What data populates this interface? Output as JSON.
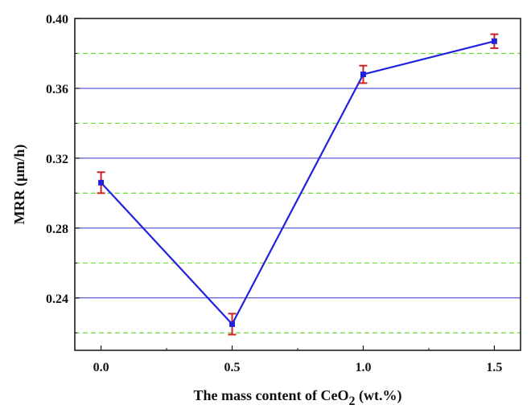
{
  "chart_data": {
    "type": "line",
    "xlabel": "The mass content of CeO",
    "xlabel_subscript": "2",
    "xlabel_suffix": " (wt.%)",
    "ylabel": "MRR (μm/h)",
    "xlim": [
      -0.1,
      1.6
    ],
    "ylim": [
      0.21,
      0.4
    ],
    "x_ticks": [
      "0.0",
      "0.5",
      "1.0",
      "1.5"
    ],
    "y_ticks": [
      "0.24",
      "0.28",
      "0.32",
      "0.36",
      "0.40"
    ],
    "major_grid_y": [
      0.24,
      0.28,
      0.32,
      0.36
    ],
    "minor_grid_y": [
      0.22,
      0.26,
      0.3,
      0.34,
      0.38
    ],
    "series": [
      {
        "x": [
          0.0,
          0.5,
          1.0,
          1.5
        ],
        "y": [
          0.306,
          0.225,
          0.368,
          0.387
        ],
        "err": [
          0.006,
          0.006,
          0.005,
          0.004
        ]
      }
    ],
    "colors": {
      "line": "#2222dd",
      "marker": "#2222dd",
      "errorbar": "#cc2222",
      "major_grid": "#3333cc",
      "minor_grid": "#66dd33",
      "axis": "#111111"
    }
  }
}
